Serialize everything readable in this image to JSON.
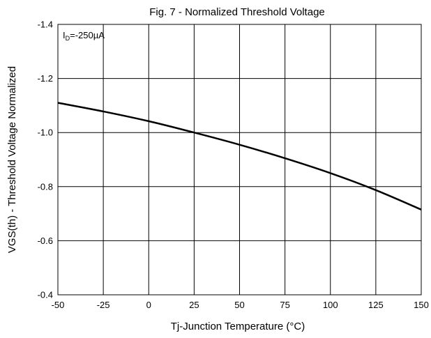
{
  "chart_data": {
    "type": "line",
    "title": "Fig. 7 - Normalized Threshold Voltage",
    "xlabel": "Tj-Junction Temperature  (°C)",
    "ylabel": "VGS(th) - Threshold Voltage Normalized",
    "annotation": {
      "prefix": "I",
      "sub": "D",
      "suffix": "=-250µA"
    },
    "xlim": [
      -50,
      150
    ],
    "ylim": [
      -0.4,
      -1.4
    ],
    "x_ticks": [
      -50,
      -25,
      0,
      25,
      50,
      75,
      100,
      125,
      150
    ],
    "x_tick_labels": [
      "-50",
      "-25",
      "0",
      "25",
      "50",
      "75",
      "100",
      "125",
      "150"
    ],
    "y_ticks": [
      -1.4,
      -1.2,
      -1.0,
      -0.8,
      -0.6,
      -0.4
    ],
    "y_tick_labels": [
      "-1.4",
      "-1.2",
      "-1.0",
      "-0.8",
      "-0.6",
      "-0.4"
    ],
    "grid": true,
    "series": [
      {
        "x": [
          -50,
          -25,
          0,
          25,
          50,
          75,
          100,
          125,
          150
        ],
        "y": [
          -1.11,
          -1.078,
          -1.042,
          -1.0,
          -0.955,
          -0.905,
          -0.85,
          -0.787,
          -0.715
        ]
      }
    ]
  }
}
